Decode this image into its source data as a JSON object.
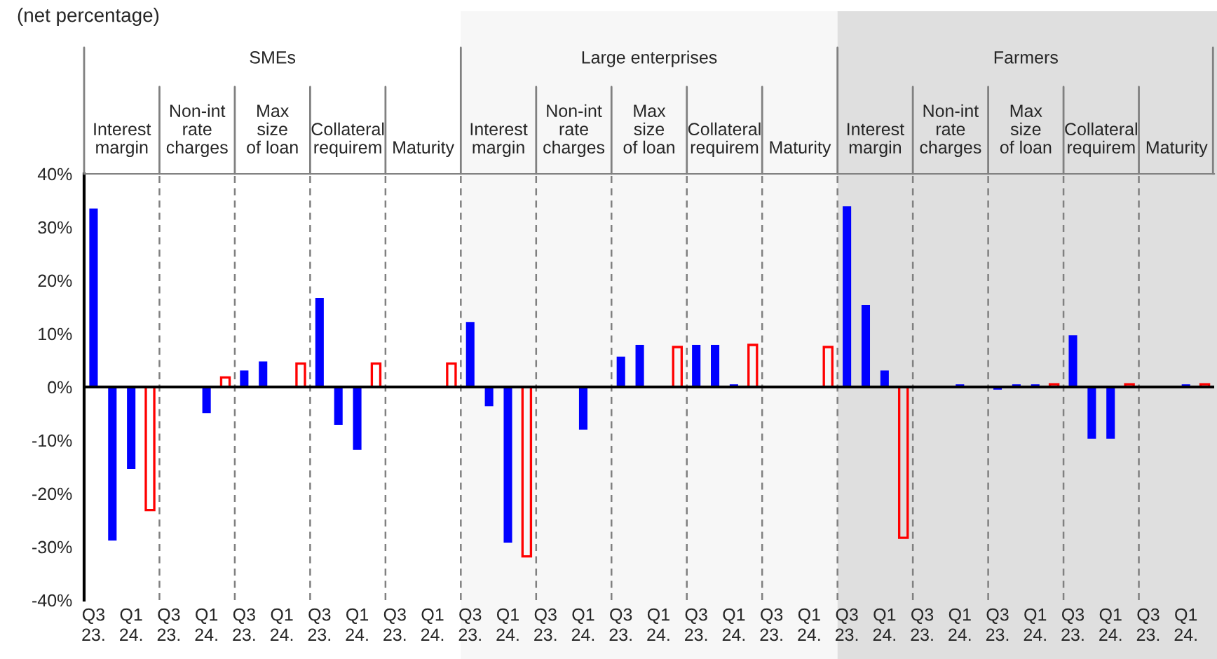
{
  "chart_data": {
    "type": "bar",
    "title": "(net percentage)",
    "categories": [
      "Q3\n23.",
      null,
      "Q1\n24.",
      null,
      "Q3\n23.",
      null,
      "Q1\n24.",
      null,
      "Q3\n23.",
      null,
      "Q1\n24.",
      null,
      "Q3\n23.",
      null,
      "Q1\n24.",
      null,
      "Q3\n23.",
      null,
      "Q1\n24.",
      null,
      "Q3\n23.",
      null,
      "Q1\n24.",
      null,
      "Q3\n23.",
      null,
      "Q1\n24.",
      null,
      "Q3\n23.",
      null,
      "Q1\n24.",
      null,
      "Q3\n23.",
      null,
      "Q1\n24.",
      null,
      "Q3\n23.",
      null,
      "Q1\n24.",
      null,
      "Q3\n23.",
      null,
      "Q1\n24.",
      null,
      "Q3\n23.",
      null,
      "Q1\n24.",
      null,
      "Q3\n23.",
      null,
      "Q1\n24.",
      null,
      "Q3\n23.",
      null,
      "Q1\n24.",
      null,
      "Q3\n23.",
      null,
      "Q1\n24.",
      null
    ],
    "series": [
      {
        "color": "#0000ff",
        "values": [
          33.5,
          -28.8,
          -15.4,
          null,
          null,
          null,
          -4.9,
          null,
          3.1,
          4.8,
          null,
          null,
          16.7,
          -7.1,
          -11.8,
          null,
          null,
          null,
          null,
          null,
          12.2,
          -3.6,
          -29.2,
          null,
          null,
          null,
          -8.0,
          null,
          5.7,
          7.9,
          null,
          null,
          7.9,
          7.9,
          0.5,
          null,
          null,
          null,
          null,
          null,
          33.9,
          15.4,
          3.1,
          null,
          null,
          null,
          0.5,
          null,
          -0.5,
          0.5,
          0.5,
          null,
          9.7,
          -9.7,
          -9.7,
          null,
          null,
          null,
          0.5,
          null
        ]
      },
      {
        "color": "#ff0000",
        "values": [
          null,
          null,
          null,
          -23.1,
          null,
          null,
          null,
          1.8,
          null,
          null,
          null,
          4.4,
          null,
          null,
          null,
          4.4,
          null,
          null,
          null,
          4.4,
          null,
          null,
          null,
          -31.8,
          null,
          null,
          null,
          null,
          null,
          null,
          null,
          7.5,
          null,
          null,
          null,
          7.9,
          null,
          null,
          null,
          7.5,
          null,
          null,
          null,
          -28.3,
          null,
          null,
          null,
          null,
          null,
          null,
          null,
          0.5,
          null,
          null,
          null,
          0.5,
          null,
          null,
          null,
          0.5
        ]
      }
    ],
    "annotations": [
      "SMEs",
      "Large enterprises",
      "Farmers",
      "Interest\nmargin",
      "Non-int\nrate\ncharges",
      "Max\nsize\nof loan",
      "Collateral\nrequirem",
      "Maturity",
      "Interest\nmargin",
      "Non-int\nrate\ncharges",
      "Max\nsize\nof loan",
      "Collateral\nrequirem",
      "Maturity",
      "Interest\nmargin",
      "Non-int\nrate\ncharges",
      "Max\nsize\nof loan",
      "Collateral\nrequirem",
      "Maturity"
    ],
    "ylim": [
      -40,
      40
    ],
    "yticks": [
      {
        "value": -40,
        "label": "-40%"
      },
      {
        "value": -30,
        "label": "-30%"
      },
      {
        "value": -20,
        "label": "-20%"
      },
      {
        "value": -10,
        "label": "-10%"
      },
      {
        "value": 0,
        "label": "0%"
      },
      {
        "value": 10,
        "label": "10%"
      },
      {
        "value": 20,
        "label": "20%"
      },
      {
        "value": 30,
        "label": "30%"
      },
      {
        "value": 40,
        "label": "40%"
      }
    ]
  }
}
